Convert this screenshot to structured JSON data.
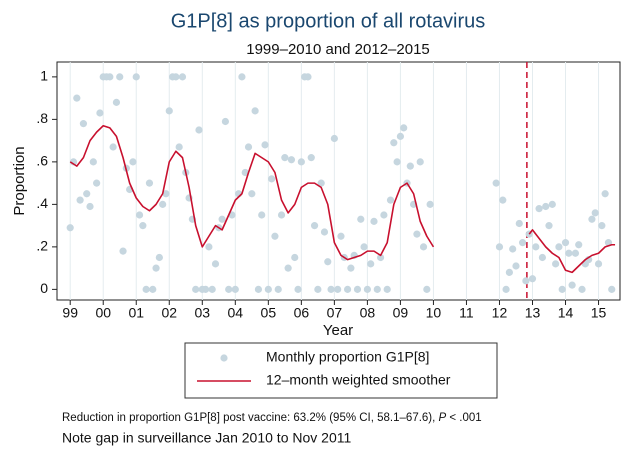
{
  "chart_data": {
    "type": "scatter",
    "title": "G1P[8] as proportion of all rotavirus",
    "subtitle": "1999–2010 and 2012–2015",
    "x_label": "Year",
    "y_label": "Proportion",
    "xlim": [
      1998.6,
      2015.65
    ],
    "ylim": [
      -0.05,
      1.07
    ],
    "xticks": [
      {
        "value": 1999,
        "label": "99"
      },
      {
        "value": 2000,
        "label": "00"
      },
      {
        "value": 2001,
        "label": "01"
      },
      {
        "value": 2002,
        "label": "02"
      },
      {
        "value": 2003,
        "label": "03"
      },
      {
        "value": 2004,
        "label": "04"
      },
      {
        "value": 2005,
        "label": "05"
      },
      {
        "value": 2006,
        "label": "06"
      },
      {
        "value": 2007,
        "label": "07"
      },
      {
        "value": 2008,
        "label": "08"
      },
      {
        "value": 2009,
        "label": "09"
      },
      {
        "value": 2010,
        "label": "10"
      },
      {
        "value": 2011,
        "label": "11"
      },
      {
        "value": 2012,
        "label": "12"
      },
      {
        "value": 2013,
        "label": "13"
      },
      {
        "value": 2014,
        "label": "14"
      },
      {
        "value": 2015,
        "label": "15"
      }
    ],
    "yticks": [
      0,
      {
        "value": 0.2,
        "label": ".2"
      },
      {
        "value": 0.4,
        "label": ".4"
      },
      {
        "value": 0.6,
        "label": ".6"
      },
      {
        "value": 0.8,
        "label": ".8"
      },
      1
    ],
    "grid": "x",
    "reference_lines": [
      {
        "x": 2012.83,
        "color": "#c8102e",
        "style": "dashed"
      }
    ],
    "series": [
      {
        "name": "Monthly proportion G1P[8]",
        "type": "scatter",
        "color": "#c6d6df",
        "x": [
          1999.0,
          1999.1,
          1999.2,
          1999.3,
          1999.4,
          1999.5,
          1999.6,
          1999.7,
          1999.8,
          1999.9,
          2000.0,
          2000.1,
          2000.2,
          2000.3,
          2000.4,
          2000.5,
          2000.6,
          2000.7,
          2000.8,
          2000.9,
          2001.0,
          2001.1,
          2001.2,
          2001.3,
          2001.4,
          2001.5,
          2001.6,
          2001.7,
          2001.8,
          2001.9,
          2002.0,
          2002.1,
          2002.2,
          2002.3,
          2002.4,
          2002.5,
          2002.6,
          2002.7,
          2002.8,
          2002.9,
          2003.0,
          2003.1,
          2003.2,
          2003.3,
          2003.4,
          2003.5,
          2003.6,
          2003.7,
          2003.8,
          2003.9,
          2004.0,
          2004.1,
          2004.2,
          2004.3,
          2004.4,
          2004.5,
          2004.6,
          2004.7,
          2004.8,
          2004.9,
          2005.0,
          2005.1,
          2005.2,
          2005.3,
          2005.4,
          2005.5,
          2005.6,
          2005.7,
          2005.8,
          2005.9,
          2006.0,
          2006.1,
          2006.2,
          2006.3,
          2006.4,
          2006.5,
          2006.6,
          2006.7,
          2006.8,
          2006.9,
          2007.0,
          2007.1,
          2007.2,
          2007.3,
          2007.4,
          2007.5,
          2007.6,
          2007.7,
          2007.8,
          2007.9,
          2008.0,
          2008.1,
          2008.2,
          2008.3,
          2008.4,
          2008.5,
          2008.6,
          2008.7,
          2008.8,
          2008.9,
          2009.0,
          2009.1,
          2009.2,
          2009.3,
          2009.4,
          2009.5,
          2009.6,
          2009.7,
          2009.8,
          2009.9,
          2011.9,
          2012.0,
          2012.1,
          2012.2,
          2012.3,
          2012.4,
          2012.5,
          2012.6,
          2012.7,
          2012.8,
          2012.9,
          2013.0,
          2013.1,
          2013.2,
          2013.3,
          2013.4,
          2013.5,
          2013.6,
          2013.7,
          2013.8,
          2013.9,
          2014.0,
          2014.1,
          2014.2,
          2014.3,
          2014.4,
          2014.5,
          2014.6,
          2014.7,
          2014.8,
          2014.9,
          2015.0,
          2015.1,
          2015.2,
          2015.3,
          2015.4
        ],
        "values": [
          0.29,
          0.6,
          0.9,
          0.42,
          0.78,
          0.45,
          0.39,
          0.6,
          0.5,
          0.83,
          1,
          1,
          1,
          0.67,
          0.88,
          1,
          0.18,
          0.57,
          0.47,
          0.6,
          1,
          0.35,
          0.3,
          0,
          0.5,
          0,
          0.1,
          0.15,
          0.4,
          0.45,
          0.84,
          1,
          1,
          0.67,
          1,
          0.55,
          0.43,
          0.33,
          0,
          0.75,
          0,
          0,
          0.2,
          0,
          0.12,
          0.29,
          0.33,
          0.79,
          0,
          0.35,
          0,
          0.45,
          1,
          0.55,
          0.67,
          0.45,
          0.84,
          0,
          0.35,
          0.68,
          0,
          0.52,
          0.25,
          0,
          0.35,
          0.62,
          0.1,
          0.61,
          0.15,
          0,
          0.6,
          1,
          1,
          0.62,
          0.3,
          0,
          0.5,
          0.27,
          0.13,
          0,
          0.71,
          0,
          0.25,
          0.15,
          0,
          0.1,
          0.16,
          0,
          0.33,
          0.2,
          0,
          0.12,
          0.32,
          0,
          0.15,
          0.35,
          0,
          0.42,
          0.69,
          0.6,
          0.72,
          0.76,
          0.5,
          0.58,
          0.4,
          0.26,
          0.6,
          0.2,
          0,
          0.4,
          0.5,
          0.2,
          0.42,
          0,
          0.08,
          0.19,
          0.11,
          0.31,
          0.22,
          0.04,
          0.26,
          0.05,
          0.2,
          0.38,
          0.15,
          0.39,
          0.3,
          0.4,
          0.12,
          0.2,
          0,
          0.22,
          0.17,
          0.02,
          0.17,
          0.21,
          0,
          0.12,
          0.14,
          0.33,
          0.36,
          0.12,
          0.3,
          0.45,
          0.22,
          0
        ]
      },
      {
        "name": "12–month weighted smoother",
        "type": "line",
        "color": "#c8102e",
        "x": [
          1999.0,
          1999.2,
          1999.4,
          1999.6,
          1999.8,
          2000.0,
          2000.2,
          2000.4,
          2000.6,
          2000.8,
          2001.0,
          2001.2,
          2001.4,
          2001.6,
          2001.8,
          2002.0,
          2002.2,
          2002.4,
          2002.6,
          2002.8,
          2003.0,
          2003.2,
          2003.4,
          2003.6,
          2003.8,
          2004.0,
          2004.2,
          2004.4,
          2004.6,
          2004.8,
          2005.0,
          2005.2,
          2005.4,
          2005.6,
          2005.8,
          2006.0,
          2006.2,
          2006.4,
          2006.6,
          2006.8,
          2007.0,
          2007.2,
          2007.4,
          2007.6,
          2007.8,
          2008.0,
          2008.2,
          2008.4,
          2008.6,
          2008.8,
          2009.0,
          2009.2,
          2009.4,
          2009.6,
          2009.8,
          2010.0,
          2011.0,
          2012.9,
          2013.0,
          2013.2,
          2013.4,
          2013.6,
          2013.8,
          2014.0,
          2014.2,
          2014.4,
          2014.6,
          2014.8,
          2015.0,
          2015.2,
          2015.4,
          2015.5
        ],
        "values": [
          0.6,
          0.58,
          0.62,
          0.7,
          0.74,
          0.77,
          0.76,
          0.72,
          0.62,
          0.5,
          0.43,
          0.39,
          0.37,
          0.4,
          0.45,
          0.6,
          0.65,
          0.62,
          0.48,
          0.3,
          0.2,
          0.25,
          0.3,
          0.28,
          0.35,
          0.42,
          0.45,
          0.55,
          0.64,
          0.62,
          0.6,
          0.55,
          0.42,
          0.36,
          0.4,
          0.48,
          0.5,
          0.5,
          0.48,
          0.4,
          0.22,
          0.16,
          0.14,
          0.15,
          0.16,
          0.18,
          0.18,
          0.16,
          0.22,
          0.4,
          0.48,
          0.5,
          0.45,
          0.32,
          0.25,
          0.2,
          null,
          0.26,
          0.28,
          0.24,
          0.2,
          0.17,
          0.15,
          0.09,
          0.08,
          0.11,
          0.14,
          0.16,
          0.17,
          0.2,
          0.21,
          0.21
        ]
      }
    ],
    "footnote": [
      "Reduction in proportion G1P[8] post vaccine: 63.2% (95% CI, 58.1–67.6), ",
      "P",
      " < .001"
    ],
    "note": "Note gap in surveillance Jan 2010 to Nov 2011"
  }
}
